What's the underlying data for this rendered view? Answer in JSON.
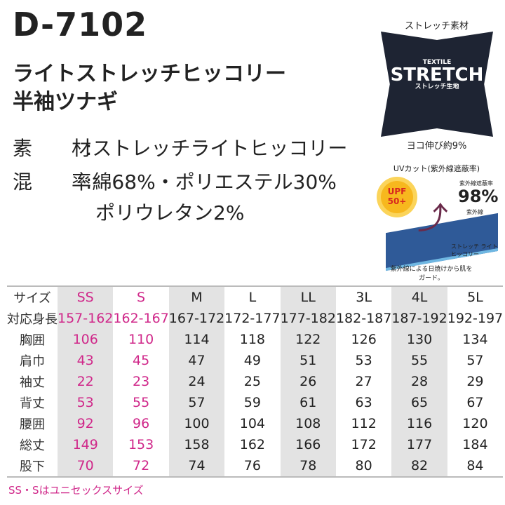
{
  "product": {
    "code": "D-7102",
    "name_line1": "ライトストレッチヒッコリー",
    "name_line2": "半袖ツナギ",
    "material_label": "素　材",
    "material": ":ストレッチライトヒッコリー",
    "blend_label": "混　率",
    "blend_line1": ":綿68%・ポリエステル30%",
    "blend_line2": "ポリウレタン2%"
  },
  "feature": {
    "stretch_title": "ストレッチ素材",
    "logo_small": "TEXTILE",
    "logo_main": "STRETCH",
    "logo_sub": "ストレッチ生地",
    "stretch_caption": "ヨコ伸び約9%",
    "uv_title": "UVカット(紫外線遮蔽率)",
    "upf": "UPF 50+",
    "block_label": "紫外線遮蔽率",
    "block_value": "98%",
    "uv_label": "紫外線",
    "fabric_label": "ストレッチ ライトヒッコリー",
    "uv_caption": "紫外線による日焼けから肌をガード。"
  },
  "size_table": {
    "rows": [
      [
        "サイズ",
        "SS",
        "S",
        "M",
        "L",
        "LL",
        "3L",
        "4L",
        "5L"
      ],
      [
        "対応身長",
        "157-162",
        "162-167",
        "167-172",
        "172-177",
        "177-182",
        "182-187",
        "187-192",
        "192-197"
      ],
      [
        "胸囲",
        "106",
        "110",
        "114",
        "118",
        "122",
        "126",
        "130",
        "134"
      ],
      [
        "肩巾",
        "43",
        "45",
        "47",
        "49",
        "51",
        "53",
        "55",
        "57"
      ],
      [
        "袖丈",
        "22",
        "23",
        "24",
        "25",
        "26",
        "27",
        "28",
        "29"
      ],
      [
        "背丈",
        "53",
        "55",
        "57",
        "59",
        "61",
        "63",
        "65",
        "67"
      ],
      [
        "腰囲",
        "92",
        "96",
        "100",
        "104",
        "108",
        "112",
        "116",
        "120"
      ],
      [
        "総丈",
        "149",
        "153",
        "158",
        "162",
        "166",
        "172",
        "177",
        "184"
      ],
      [
        "股下",
        "70",
        "72",
        "74",
        "76",
        "78",
        "80",
        "82",
        "84"
      ]
    ]
  },
  "note": "SS・Sはユニセックスサイズ",
  "colors": {
    "accent": "#d0288a",
    "shade": "#e3e3e3"
  }
}
